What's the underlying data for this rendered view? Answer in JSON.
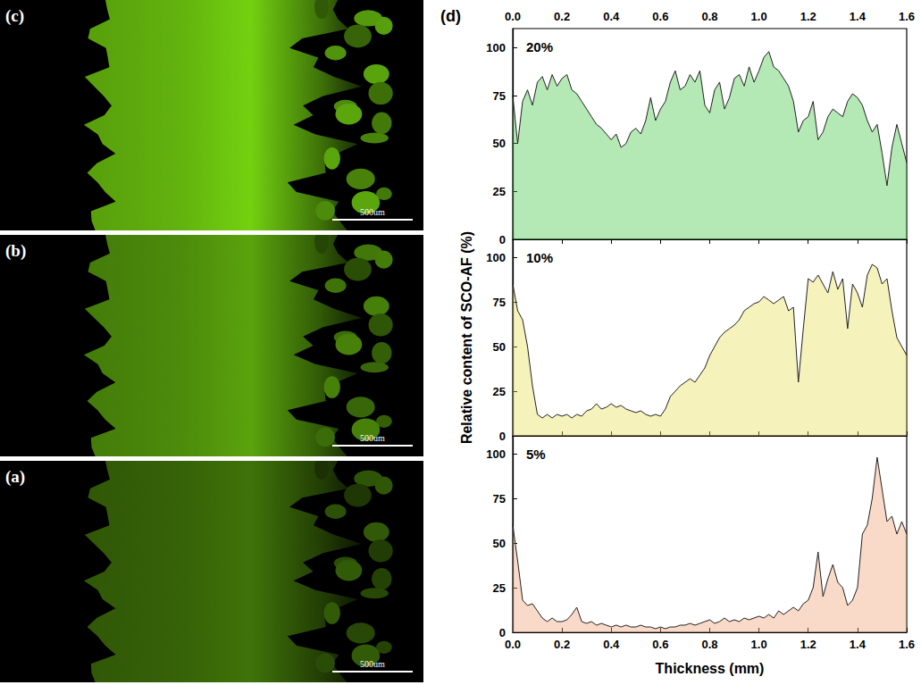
{
  "images": [
    {
      "label": "(c)",
      "scale_bar": "500um"
    },
    {
      "label": "(b)",
      "scale_bar": "500um"
    },
    {
      "label": "(a)",
      "scale_bar": "500um"
    }
  ],
  "chart_label": "(d)",
  "chart_data": [
    {
      "type": "area",
      "title": "20%",
      "color": "#3cc43c",
      "x": [
        0,
        0.02,
        0.04,
        0.06,
        0.08,
        0.1,
        0.12,
        0.14,
        0.16,
        0.18,
        0.2,
        0.22,
        0.24,
        0.26,
        0.28,
        0.3,
        0.32,
        0.34,
        0.36,
        0.38,
        0.4,
        0.42,
        0.44,
        0.46,
        0.48,
        0.5,
        0.52,
        0.54,
        0.56,
        0.58,
        0.6,
        0.62,
        0.64,
        0.66,
        0.68,
        0.7,
        0.72,
        0.74,
        0.76,
        0.78,
        0.8,
        0.82,
        0.84,
        0.86,
        0.88,
        0.9,
        0.92,
        0.94,
        0.96,
        0.98,
        1.0,
        1.02,
        1.04,
        1.06,
        1.08,
        1.1,
        1.12,
        1.14,
        1.16,
        1.18,
        1.2,
        1.22,
        1.24,
        1.26,
        1.28,
        1.3,
        1.32,
        1.34,
        1.36,
        1.38,
        1.4,
        1.42,
        1.44,
        1.46,
        1.48,
        1.5,
        1.52,
        1.54,
        1.56,
        1.58,
        1.6
      ],
      "values": [
        75,
        50,
        72,
        78,
        70,
        82,
        85,
        78,
        86,
        80,
        84,
        86,
        78,
        76,
        72,
        68,
        64,
        60,
        58,
        55,
        52,
        55,
        48,
        50,
        56,
        58,
        55,
        62,
        74,
        62,
        68,
        72,
        82,
        88,
        78,
        80,
        86,
        82,
        88,
        70,
        66,
        78,
        82,
        68,
        74,
        84,
        86,
        80,
        90,
        82,
        88,
        95,
        98,
        90,
        88,
        84,
        80,
        72,
        56,
        62,
        64,
        72,
        52,
        56,
        64,
        68,
        66,
        64,
        72,
        76,
        74,
        70,
        62,
        56,
        60,
        45,
        28,
        48,
        60,
        50,
        40
      ],
      "xlim": [
        0,
        1.6
      ],
      "xticks": [
        {
          "value": 0,
          "label": "0.0"
        },
        {
          "value": 0.2,
          "label": "0.2"
        },
        {
          "value": 0.4,
          "label": "0.4"
        },
        {
          "value": 0.6,
          "label": "0.6"
        },
        {
          "value": 0.8,
          "label": "0.8"
        },
        {
          "value": 1.0,
          "label": "1.0"
        },
        {
          "value": 1.2,
          "label": "1.2"
        },
        {
          "value": 1.4,
          "label": "1.4"
        },
        {
          "value": 1.6,
          "label": "1.6"
        }
      ],
      "ylim": [
        0,
        110
      ],
      "yticks": [
        0,
        25,
        50,
        75,
        100
      ]
    },
    {
      "type": "area",
      "title": "10%",
      "color": "#e8dc50",
      "ylabel": "Relative content of SCO-AF (%)",
      "tick_labels": "y",
      "x": [
        0,
        0.02,
        0.04,
        0.06,
        0.08,
        0.1,
        0.12,
        0.14,
        0.16,
        0.18,
        0.2,
        0.22,
        0.24,
        0.26,
        0.28,
        0.3,
        0.32,
        0.34,
        0.36,
        0.38,
        0.4,
        0.42,
        0.44,
        0.46,
        0.48,
        0.5,
        0.52,
        0.54,
        0.56,
        0.58,
        0.6,
        0.62,
        0.64,
        0.66,
        0.68,
        0.7,
        0.72,
        0.74,
        0.76,
        0.78,
        0.8,
        0.82,
        0.84,
        0.86,
        0.88,
        0.9,
        0.92,
        0.94,
        0.96,
        0.98,
        1.0,
        1.02,
        1.04,
        1.06,
        1.08,
        1.1,
        1.12,
        1.14,
        1.16,
        1.18,
        1.2,
        1.22,
        1.24,
        1.26,
        1.28,
        1.3,
        1.32,
        1.34,
        1.36,
        1.38,
        1.4,
        1.42,
        1.44,
        1.46,
        1.48,
        1.5,
        1.52,
        1.54,
        1.56,
        1.58,
        1.6
      ],
      "values": [
        85,
        70,
        65,
        50,
        28,
        12,
        10,
        12,
        10,
        12,
        11,
        12,
        10,
        12,
        11,
        14,
        15,
        18,
        15,
        16,
        18,
        16,
        17,
        15,
        14,
        13,
        14,
        12,
        11,
        12,
        11,
        15,
        22,
        25,
        28,
        30,
        32,
        30,
        34,
        38,
        45,
        50,
        55,
        58,
        60,
        62,
        65,
        70,
        72,
        74,
        75,
        78,
        76,
        74,
        76,
        78,
        70,
        72,
        30,
        60,
        88,
        86,
        90,
        85,
        80,
        92,
        82,
        88,
        60,
        85,
        80,
        72,
        90,
        96,
        94,
        85,
        88,
        70,
        55,
        50,
        45
      ],
      "xlim": [
        0,
        1.6
      ],
      "xticks": [
        {
          "value": 0,
          "label": "0.0"
        },
        {
          "value": 0.2,
          "label": "0.2"
        },
        {
          "value": 0.4,
          "label": "0.4"
        },
        {
          "value": 0.6,
          "label": "0.6"
        },
        {
          "value": 0.8,
          "label": "0.8"
        },
        {
          "value": 1.0,
          "label": "1.0"
        },
        {
          "value": 1.2,
          "label": "1.2"
        },
        {
          "value": 1.4,
          "label": "1.4"
        },
        {
          "value": 1.6,
          "label": "1.6"
        }
      ],
      "ylim": [
        0,
        110
      ],
      "yticks": [
        0,
        25,
        50,
        75,
        100
      ]
    },
    {
      "type": "area",
      "title": "5%",
      "color": "#f0a070",
      "xlabel": "Thickness (mm)",
      "x": [
        0,
        0.02,
        0.04,
        0.06,
        0.08,
        0.1,
        0.12,
        0.14,
        0.16,
        0.18,
        0.2,
        0.22,
        0.24,
        0.26,
        0.28,
        0.3,
        0.32,
        0.34,
        0.36,
        0.38,
        0.4,
        0.42,
        0.44,
        0.46,
        0.48,
        0.5,
        0.52,
        0.54,
        0.56,
        0.58,
        0.6,
        0.62,
        0.64,
        0.66,
        0.68,
        0.7,
        0.72,
        0.74,
        0.76,
        0.78,
        0.8,
        0.82,
        0.84,
        0.86,
        0.88,
        0.9,
        0.92,
        0.94,
        0.96,
        0.98,
        1.0,
        1.02,
        1.04,
        1.06,
        1.08,
        1.1,
        1.12,
        1.14,
        1.16,
        1.18,
        1.2,
        1.22,
        1.24,
        1.26,
        1.28,
        1.3,
        1.32,
        1.34,
        1.36,
        1.38,
        1.4,
        1.42,
        1.44,
        1.46,
        1.48,
        1.5,
        1.52,
        1.54,
        1.56,
        1.58,
        1.6
      ],
      "values": [
        60,
        40,
        18,
        15,
        16,
        12,
        8,
        6,
        8,
        6,
        6,
        7,
        10,
        14,
        6,
        5,
        6,
        4,
        5,
        4,
        3,
        4,
        3,
        4,
        3,
        3,
        4,
        3,
        3,
        2,
        3,
        2,
        3,
        3,
        4,
        4,
        5,
        4,
        5,
        6,
        7,
        5,
        6,
        8,
        6,
        7,
        6,
        8,
        7,
        8,
        9,
        8,
        10,
        8,
        12,
        10,
        12,
        14,
        12,
        16,
        18,
        25,
        45,
        20,
        30,
        38,
        28,
        25,
        15,
        18,
        25,
        55,
        60,
        75,
        98,
        80,
        62,
        65,
        55,
        62,
        55
      ],
      "xlim": [
        0,
        1.6
      ],
      "xticks": [
        {
          "value": 0,
          "label": "0.0"
        },
        {
          "value": 0.2,
          "label": "0.2"
        },
        {
          "value": 0.4,
          "label": "0.4"
        },
        {
          "value": 0.6,
          "label": "0.6"
        },
        {
          "value": 0.8,
          "label": "0.8"
        },
        {
          "value": 1.0,
          "label": "1.0"
        },
        {
          "value": 1.2,
          "label": "1.2"
        },
        {
          "value": 1.4,
          "label": "1.4"
        },
        {
          "value": 1.6,
          "label": "1.6"
        }
      ],
      "ylim": [
        0,
        110
      ],
      "yticks": [
        0,
        25,
        50,
        75,
        100
      ]
    }
  ]
}
